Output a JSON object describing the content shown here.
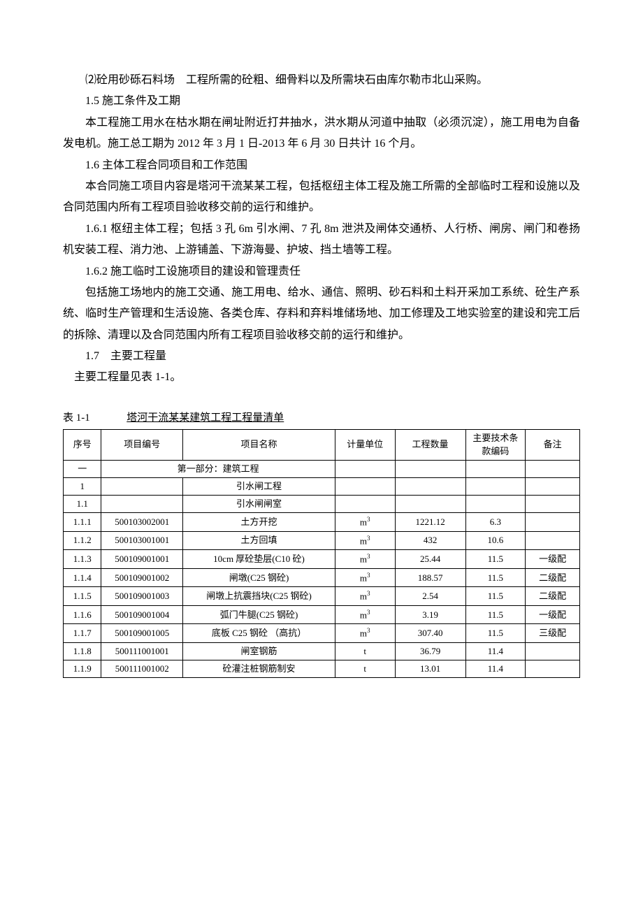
{
  "paragraphs": {
    "p1": "⑵砼用砂砾石料场　工程所需的砼粗、细骨料以及所需块石由库尔勒市北山采购。",
    "h15": "1.5 施工条件及工期",
    "p2": "本工程施工用水在枯水期在闸址附近打井抽水，洪水期从河道中抽取（必须沉淀），施工用电为自备发电机。施工总工期为 2012 年 3 月 1 日-2013 年 6 月 30 日共计 16 个月。",
    "h16": "1.6 主体工程合同项目和工作范围",
    "p3": "本合同施工项目内容是塔河干流某某工程，包括枢纽主体工程及施工所需的全部临时工程和设施以及合同范围内所有工程项目验收移交前的运行和维护。",
    "p4": "1.6.1 枢纽主体工程；包括 3 孔 6m 引水闸、7 孔 8m 泄洪及闸体交通桥、人行桥、闸房、闸门和卷扬机安装工程、消力池、上游铺盖、下游海曼、护坡、挡土墙等工程。",
    "p5": "1.6.2 施工临时工设施项目的建设和管理责任",
    "p6": "包括施工场地内的施工交通、施工用电、给水、通信、照明、砂石料和土料开采加工系统、砼生产系统、临时生产管理和生活设施、各类仓库、存料和弃料堆储场地、加工修理及工地实验室的建设和完工后的拆除、清理以及合同范围内所有工程项目验收移交前的运行和维护。",
    "h17": "1.7　主要工程量",
    "p7": "主要工程量见表 1-1。"
  },
  "table": {
    "caption_label": "表 1-1",
    "caption_title": "塔河干流某某建筑工程工程量清单",
    "headers": {
      "seq": "序号",
      "code": "项目编号",
      "name": "项目名称",
      "unit": "计量单位",
      "qty": "工程数量",
      "tech": "主要技术条款编码",
      "note": "备注"
    },
    "section1_seq": "一",
    "section1_name": "第一部分：建筑工程",
    "rows": [
      {
        "seq": "1",
        "code": "",
        "name": "引水闸工程",
        "unit": "",
        "qty": "",
        "tech": "",
        "note": ""
      },
      {
        "seq": "1.1",
        "code": "",
        "name": "引水闸闸室",
        "unit": "",
        "qty": "",
        "tech": "",
        "note": ""
      },
      {
        "seq": "1.1.1",
        "code": "500103002001",
        "name": "土方开挖",
        "unit": "m³",
        "qty": "1221.12",
        "tech": "6.3",
        "note": ""
      },
      {
        "seq": "1.1.2",
        "code": "500103001001",
        "name": "土方回填",
        "unit": "m³",
        "qty": "432",
        "tech": "10.6",
        "note": ""
      },
      {
        "seq": "1.1.3",
        "code": "500109001001",
        "name": "10cm 厚砼垫层(C10 砼)",
        "unit": "m³",
        "qty": "25.44",
        "tech": "11.5",
        "note": "一级配"
      },
      {
        "seq": "1.1.4",
        "code": "500109001002",
        "name": "闸墩(C25 钢砼)",
        "unit": "m³",
        "qty": "188.57",
        "tech": "11.5",
        "note": "二级配"
      },
      {
        "seq": "1.1.5",
        "code": "500109001003",
        "name": "闸墩上抗震挡块(C25 钢砼)",
        "unit": "m³",
        "qty": "2.54",
        "tech": "11.5",
        "note": "二级配"
      },
      {
        "seq": "1.1.6",
        "code": "500109001004",
        "name": "弧门牛腿(C25 钢砼)",
        "unit": "m³",
        "qty": "3.19",
        "tech": "11.5",
        "note": "一级配"
      },
      {
        "seq": "1.1.7",
        "code": "500109001005",
        "name": "底板 C25 钢砼 （高抗）",
        "unit": "m³",
        "qty": "307.40",
        "tech": "11.5",
        "note": "三级配"
      },
      {
        "seq": "1.1.8",
        "code": "500111001001",
        "name": "闸室钢筋",
        "unit": "t",
        "qty": "36.79",
        "tech": "11.4",
        "note": ""
      },
      {
        "seq": "1.1.9",
        "code": "500111001002",
        "name": "砼灌注桩钢筋制安",
        "unit": "t",
        "qty": "13.01",
        "tech": "11.4",
        "note": ""
      }
    ]
  }
}
